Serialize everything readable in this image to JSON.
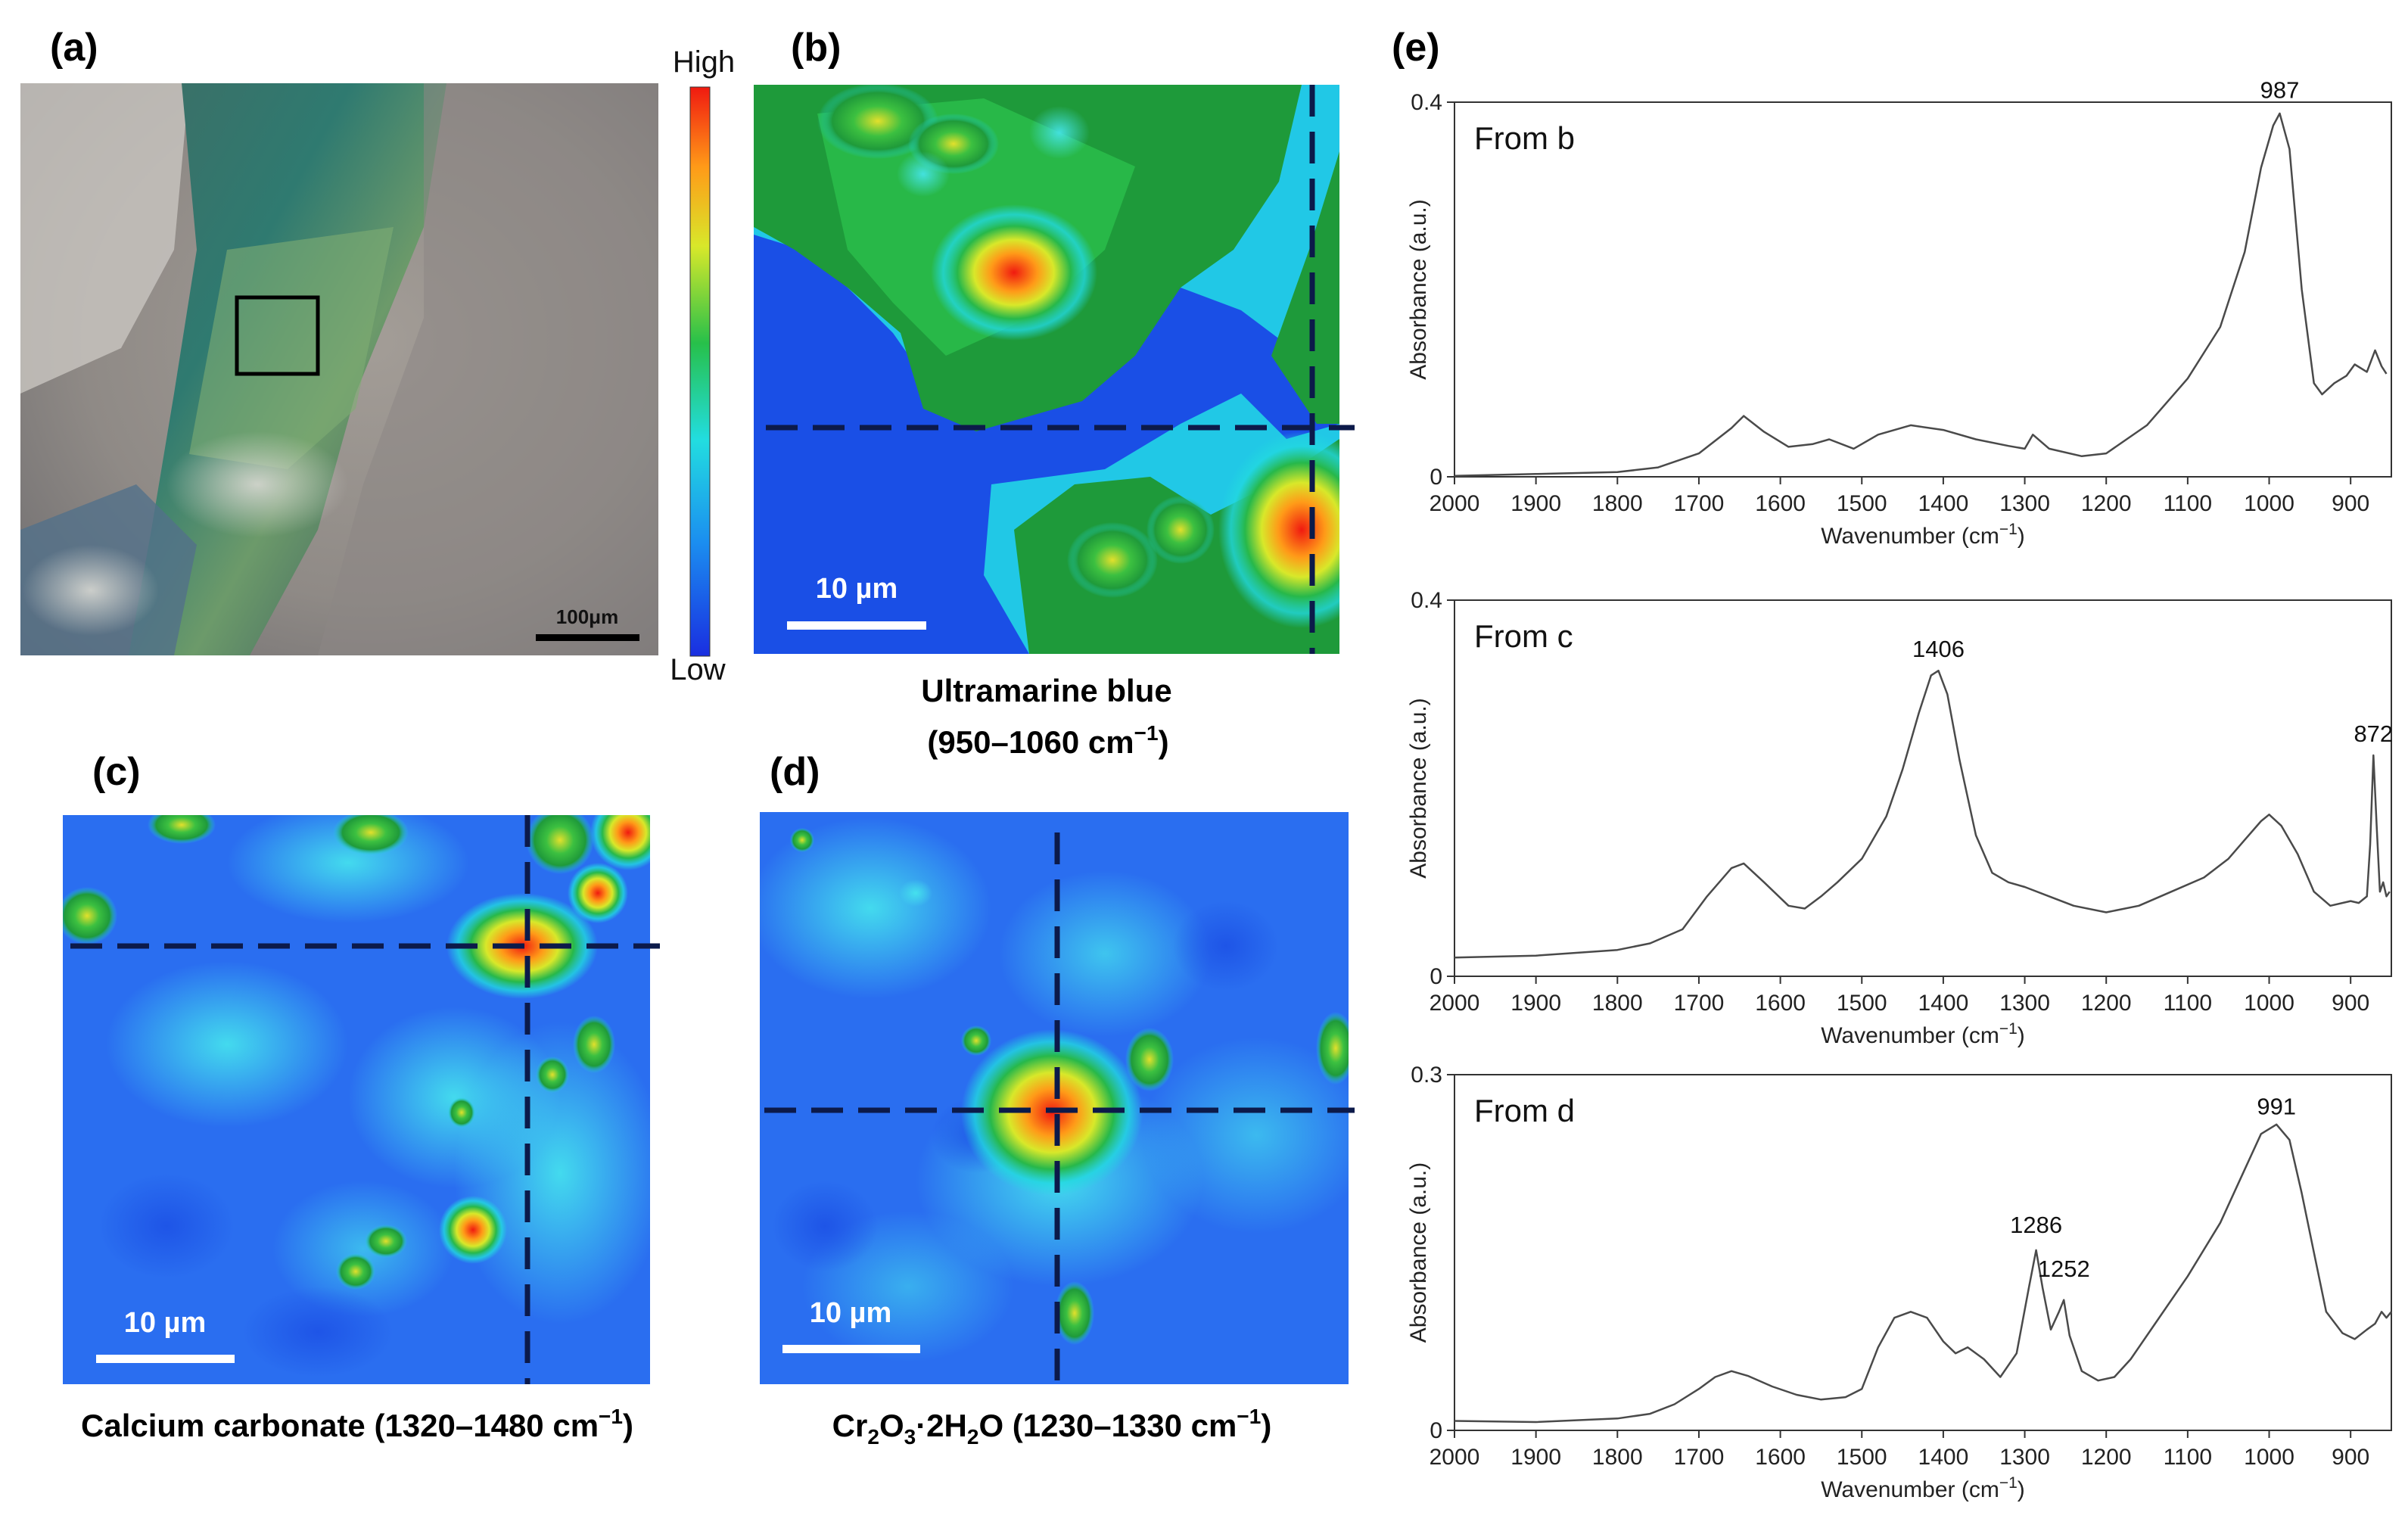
{
  "panels": {
    "a": {
      "letter": "(a)",
      "scale_bar": "100μm"
    },
    "colorbar": {
      "high": "High",
      "low": "Low"
    },
    "b": {
      "letter": "(b)",
      "scale_bar": "10 µm",
      "caption_line1": "Ultramarine blue",
      "caption_line2_prefix": "(950–1060 cm",
      "caption_exp": "−1",
      "caption_suffix": ")"
    },
    "c": {
      "letter": "(c)",
      "scale_bar": "10 µm",
      "caption_prefix": "Calcium carbonate (1320–1480 cm",
      "caption_exp": "−1",
      "caption_suffix": ")"
    },
    "d": {
      "letter": "(d)",
      "scale_bar": "10 µm",
      "caption_p1": "Cr",
      "caption_sub1": "2",
      "caption_p2": "O",
      "caption_sub2": "3",
      "caption_p3": "·2H",
      "caption_sub3": "2",
      "caption_p4": "O (1230–1330 cm",
      "caption_exp": "−1",
      "caption_suffix": ")"
    },
    "e": {
      "letter": "(e)"
    }
  },
  "chart_data": [
    {
      "type": "line",
      "source_label": "From b",
      "ylabel": "Absorbance (a.u.)",
      "xlabel_prefix": "Wavenumber (cm",
      "xlabel_exp": "−1",
      "xlabel_suffix": ")",
      "xlim": [
        2000,
        850
      ],
      "ylim": [
        0,
        0.4
      ],
      "yticks": [
        "0",
        "0.4"
      ],
      "xticks": [
        "2000",
        "1900",
        "1800",
        "1700",
        "1600",
        "1500",
        "1400",
        "1300",
        "1200",
        "1100",
        "1000",
        "900"
      ],
      "annotations": [
        {
          "x": 987,
          "y": 0.39,
          "text": "987"
        }
      ],
      "x": [
        2000,
        1900,
        1800,
        1750,
        1700,
        1660,
        1645,
        1620,
        1590,
        1560,
        1540,
        1510,
        1480,
        1440,
        1400,
        1360,
        1320,
        1300,
        1290,
        1270,
        1230,
        1200,
        1150,
        1100,
        1060,
        1030,
        1010,
        995,
        987,
        975,
        960,
        945,
        935,
        920,
        905,
        895,
        880,
        870,
        862,
        856
      ],
      "y": [
        0.001,
        0.003,
        0.005,
        0.01,
        0.025,
        0.052,
        0.065,
        0.048,
        0.032,
        0.035,
        0.04,
        0.03,
        0.045,
        0.055,
        0.05,
        0.04,
        0.033,
        0.03,
        0.045,
        0.03,
        0.022,
        0.025,
        0.055,
        0.105,
        0.16,
        0.24,
        0.33,
        0.375,
        0.388,
        0.35,
        0.2,
        0.1,
        0.088,
        0.1,
        0.108,
        0.12,
        0.112,
        0.135,
        0.118,
        0.11
      ]
    },
    {
      "type": "line",
      "source_label": "From c",
      "ylabel": "Absorbance (a.u.)",
      "xlabel_prefix": "Wavenumber (cm",
      "xlabel_exp": "−1",
      "xlabel_suffix": ")",
      "xlim": [
        2000,
        850
      ],
      "ylim": [
        0,
        0.4
      ],
      "yticks": [
        "0",
        "0.4"
      ],
      "xticks": [
        "2000",
        "1900",
        "1800",
        "1700",
        "1600",
        "1500",
        "1400",
        "1300",
        "1200",
        "1100",
        "1000",
        "900"
      ],
      "annotations": [
        {
          "x": 1406,
          "y": 0.325,
          "text": "1406"
        },
        {
          "x": 872,
          "y": 0.235,
          "text": "872"
        }
      ],
      "x": [
        2000,
        1900,
        1800,
        1760,
        1720,
        1690,
        1660,
        1645,
        1620,
        1590,
        1570,
        1550,
        1530,
        1500,
        1470,
        1450,
        1430,
        1415,
        1406,
        1395,
        1380,
        1360,
        1340,
        1320,
        1300,
        1270,
        1240,
        1200,
        1160,
        1120,
        1080,
        1050,
        1030,
        1010,
        1000,
        985,
        965,
        945,
        925,
        900,
        890,
        880,
        876,
        872,
        868,
        864,
        860,
        856,
        852
      ],
      "y": [
        0.02,
        0.022,
        0.028,
        0.035,
        0.05,
        0.085,
        0.115,
        0.12,
        0.1,
        0.075,
        0.072,
        0.085,
        0.1,
        0.125,
        0.17,
        0.22,
        0.28,
        0.32,
        0.325,
        0.3,
        0.23,
        0.15,
        0.11,
        0.1,
        0.095,
        0.085,
        0.075,
        0.068,
        0.075,
        0.09,
        0.105,
        0.125,
        0.145,
        0.165,
        0.172,
        0.16,
        0.13,
        0.09,
        0.075,
        0.08,
        0.078,
        0.085,
        0.14,
        0.235,
        0.16,
        0.09,
        0.1,
        0.085,
        0.09
      ]
    },
    {
      "type": "line",
      "source_label": "From d",
      "ylabel": "Absorbance (a.u.)",
      "xlabel_prefix": "Wavenumber (cm",
      "xlabel_exp": "−1",
      "xlabel_suffix": ")",
      "xlim": [
        2000,
        850
      ],
      "ylim": [
        0,
        0.3
      ],
      "yticks": [
        "0",
        "0.3"
      ],
      "xticks": [
        "2000",
        "1900",
        "1800",
        "1700",
        "1600",
        "1500",
        "1400",
        "1300",
        "1200",
        "1100",
        "1000",
        "900"
      ],
      "annotations": [
        {
          "x": 991,
          "y": 0.255,
          "text": "991"
        },
        {
          "x": 1286,
          "y": 0.155,
          "text": "1286"
        },
        {
          "x": 1252,
          "y": 0.118,
          "text": "1252"
        }
      ],
      "x": [
        2000,
        1900,
        1800,
        1760,
        1730,
        1700,
        1680,
        1660,
        1640,
        1610,
        1580,
        1550,
        1520,
        1500,
        1480,
        1460,
        1440,
        1420,
        1400,
        1385,
        1370,
        1350,
        1330,
        1310,
        1295,
        1286,
        1278,
        1268,
        1258,
        1252,
        1245,
        1230,
        1210,
        1190,
        1170,
        1140,
        1100,
        1060,
        1030,
        1010,
        991,
        975,
        960,
        945,
        930,
        910,
        895,
        880,
        870,
        862,
        856,
        850
      ],
      "y": [
        0.008,
        0.007,
        0.01,
        0.014,
        0.022,
        0.035,
        0.045,
        0.05,
        0.046,
        0.037,
        0.03,
        0.026,
        0.028,
        0.035,
        0.07,
        0.095,
        0.1,
        0.095,
        0.075,
        0.065,
        0.07,
        0.06,
        0.045,
        0.065,
        0.12,
        0.152,
        0.12,
        0.085,
        0.1,
        0.11,
        0.08,
        0.05,
        0.042,
        0.045,
        0.06,
        0.09,
        0.13,
        0.175,
        0.22,
        0.25,
        0.258,
        0.245,
        0.2,
        0.15,
        0.1,
        0.082,
        0.077,
        0.085,
        0.09,
        0.1,
        0.095,
        0.1
      ]
    }
  ]
}
